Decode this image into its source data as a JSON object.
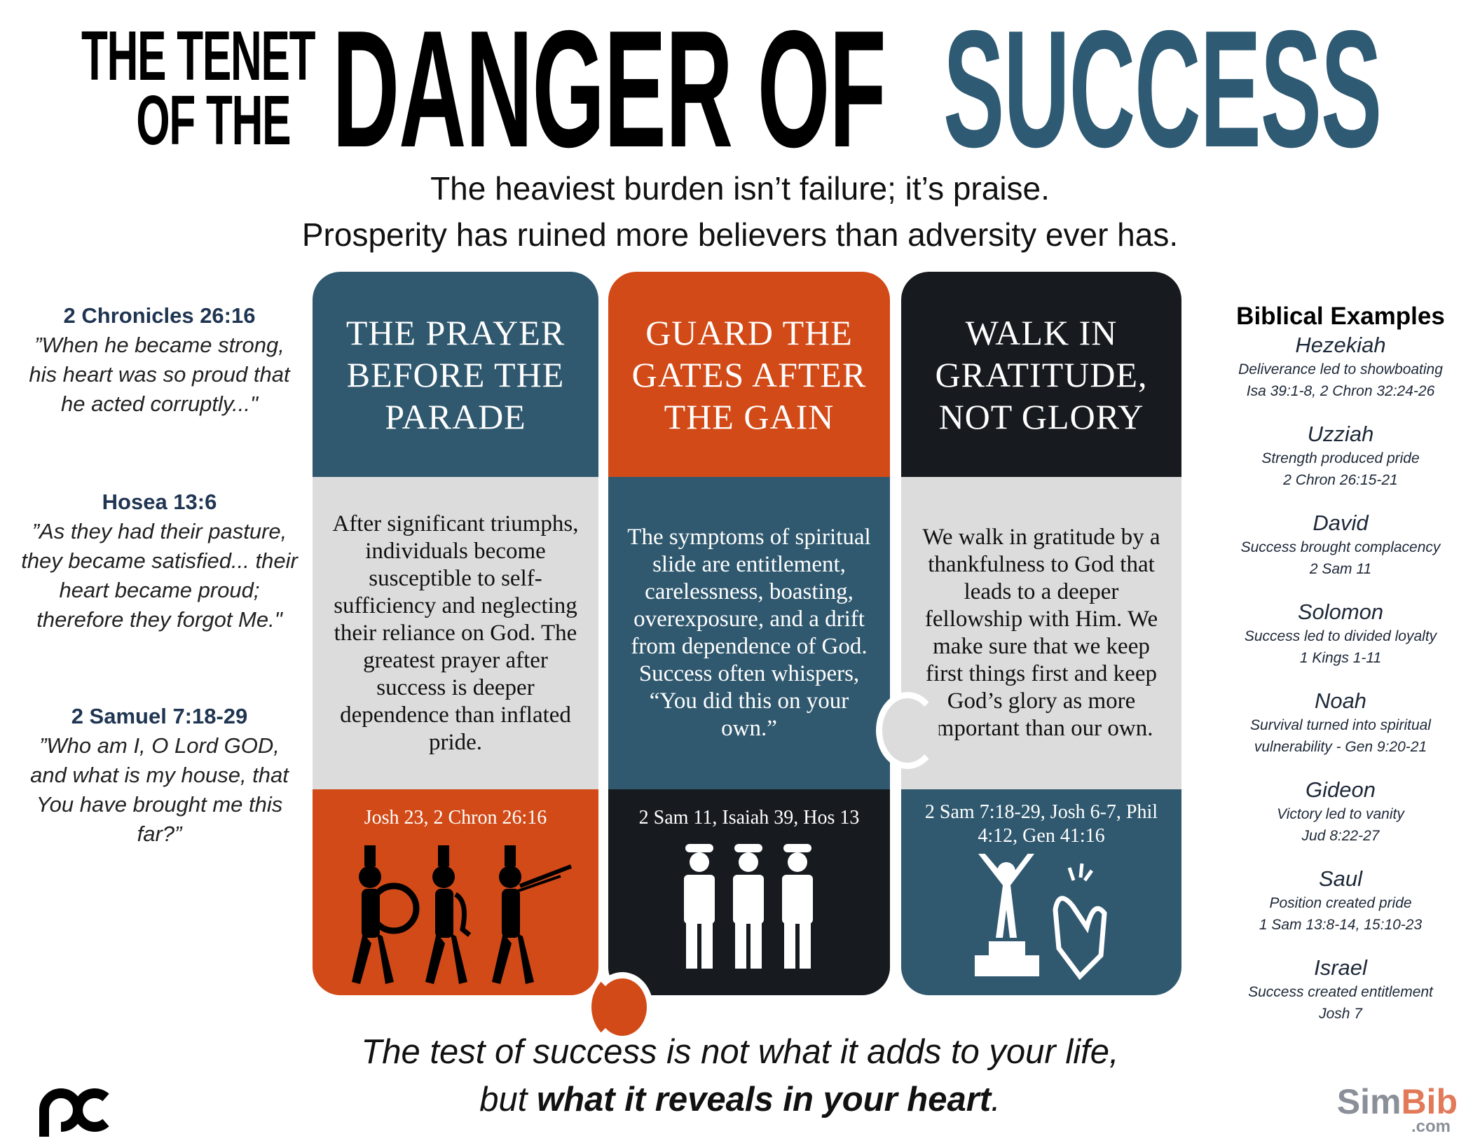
{
  "title": {
    "part1_line1": "THE TENET",
    "part1_line2": "OF THE",
    "part2": "DANGER OF",
    "part3": "SUCCESS",
    "accent": "#2f5a73"
  },
  "subtitle": {
    "line1": "The heaviest burden isn’t failure; it’s praise.",
    "line2": "Prosperity has ruined more believers than adversity ever has."
  },
  "quotes": [
    {
      "ref": "2 Chronicles 26:16",
      "text": "”When he became strong, his heart was so proud that he acted corruptly...\""
    },
    {
      "ref": "Hosea 13:6",
      "text": "”As they had their pasture, they became satisfied... their heart became proud; therefore they forgot Me.\""
    },
    {
      "ref": "2 Samuel 7:18-29",
      "text": "”Who am I, O Lord GOD, and what is my house, that You have brought me this far?”"
    }
  ],
  "columns": [
    {
      "header": "THE PRAYER BEFORE THE PARADE",
      "body": "After significant triumphs, individuals become susceptible to self-sufficiency and neglecting their reliance on God. The greatest prayer after success is deeper dependence than inflated pride.",
      "refs": "Josh 23, 2 Chron 26:16",
      "icon": "marching-band-icon"
    },
    {
      "header": "GUARD THE GATES AFTER THE GAIN",
      "body": "The symptoms of spiritual slide are entitlement, carelessness, boasting, overexposure, and a drift from dependence of God. Success often whispers, “You did this on your own.”",
      "refs": "2 Sam 11, Isaiah 39, Hos 13",
      "icon": "guards-icon"
    },
    {
      "header": "WALK IN GRATITUDE, NOT GLORY",
      "body": "We walk in gratitude by a thankfulness to God that leads to a deeper fellowship with Him. We make sure that we keep first things first and keep God’s glory as more important than our own.",
      "refs": "2 Sam 7:18-29, Josh 6-7, Phil 4:12, Gen 41:16",
      "icon": "podium-applause-icon"
    }
  ],
  "colors": {
    "blue": "#30596f",
    "orange": "#d24a17",
    "dark": "#171b1f",
    "gray": "#dcdcdc"
  },
  "examples": {
    "heading": "Biblical Examples",
    "items": [
      {
        "name": "Hezekiah",
        "desc": "Deliverance led to showboating",
        "ref": "Isa 39:1-8, 2 Chron 32:24-26"
      },
      {
        "name": "Uzziah",
        "desc": "Strength produced pride",
        "ref": "2 Chron 26:15-21"
      },
      {
        "name": "David",
        "desc": "Success brought complacency",
        "ref": "2 Sam 11"
      },
      {
        "name": "Solomon",
        "desc": "Success led to divided loyalty",
        "ref": "1 Kings 1-11"
      },
      {
        "name": "Noah",
        "desc": "Survival turned into spiritual",
        "ref": "vulnerability - Gen 9:20-21"
      },
      {
        "name": "Gideon",
        "desc": "Victory led to vanity",
        "ref": "Jud 8:22-27"
      },
      {
        "name": "Saul",
        "desc": "Position created pride",
        "ref": "1 Sam 13:8-14, 15:10-23"
      },
      {
        "name": "Israel",
        "desc": "Success created entitlement",
        "ref": "Josh 7"
      }
    ]
  },
  "tagline": {
    "line1": "The test of success is not what it adds to your life,",
    "line2_pre": "but ",
    "line2_bold": "what it reveals in your heart",
    "line2_post": "."
  },
  "logos": {
    "left": "pc",
    "right_main_1": "Sim",
    "right_main_2": "Bib",
    "right_sub": ".com"
  }
}
